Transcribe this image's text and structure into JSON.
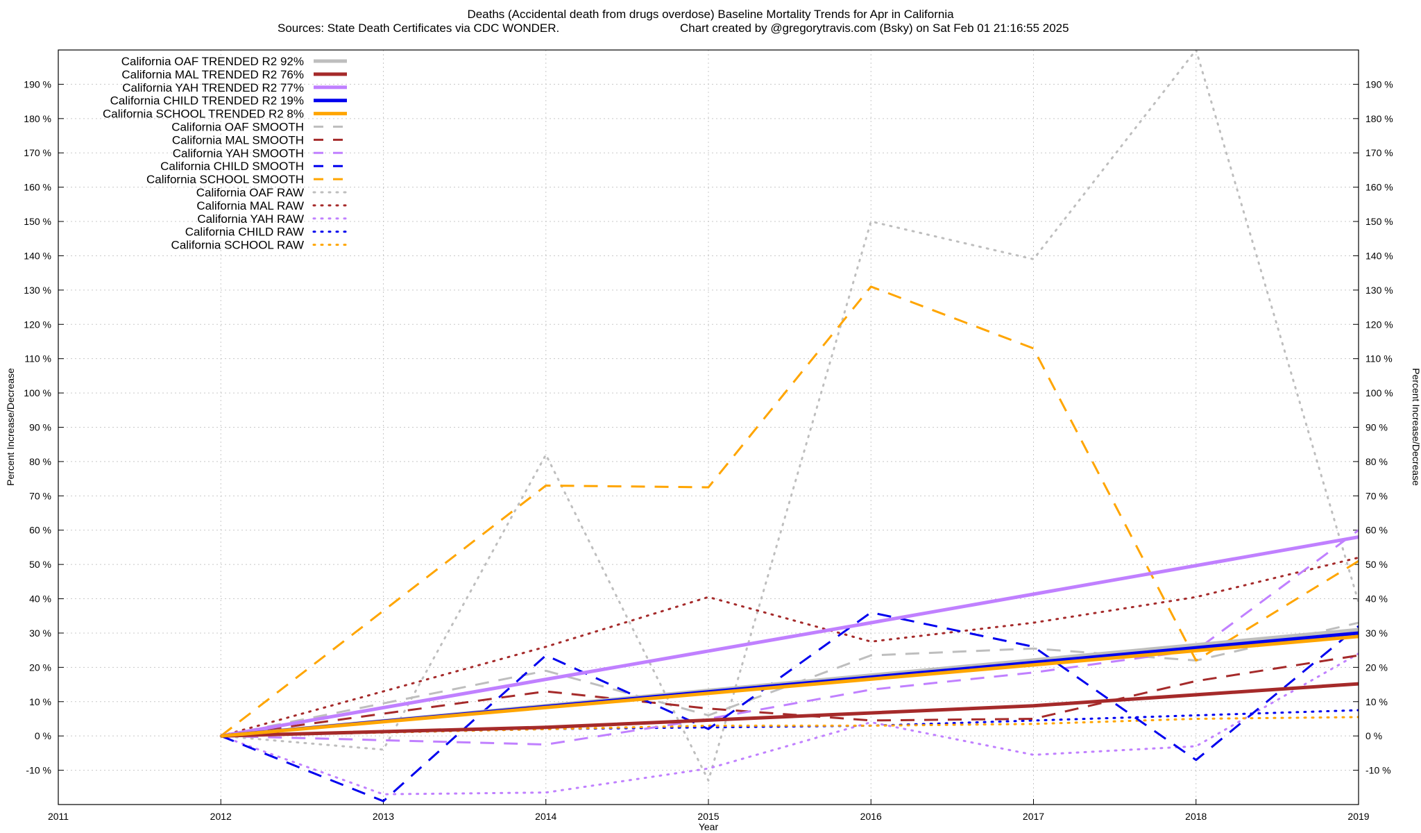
{
  "chart_data": {
    "type": "line",
    "title_line1": "Deaths (Accidental death from drugs overdose)  Baseline Mortality Trends for Apr in California",
    "title_line2_left": "Sources: State Death Certificates via CDC WONDER.",
    "title_line2_right": "Chart created by @gregorytravis.com (Bsky) on Sat Feb 01 21:16:55 2025",
    "xlabel": "Year",
    "ylabel": "Percent Increase/Decrease",
    "xlim": [
      2011,
      2019
    ],
    "ylim": [
      -20,
      200
    ],
    "x_ticks": [
      "2011",
      "2012",
      "2013",
      "2014",
      "2015",
      "2016",
      "2017",
      "2018",
      "2019"
    ],
    "y_ticks": [
      "-10 %",
      "0 %",
      "10 %",
      "20 %",
      "30 %",
      "40 %",
      "50 %",
      "60 %",
      "70 %",
      "80 %",
      "90 %",
      "100 %",
      "110 %",
      "120 %",
      "130 %",
      "140 %",
      "150 %",
      "160 %",
      "170 %",
      "180 %",
      "190 %"
    ],
    "grid": true,
    "legend_position": "top-left",
    "series": [
      {
        "name": "California OAF TRENDED R2  92%",
        "style": "solid",
        "color": "#bebebe",
        "x": [
          2012,
          2019
        ],
        "y": [
          0,
          31
        ]
      },
      {
        "name": "California MAL TRENDED R2  76%",
        "style": "solid",
        "color": "#a52a2a",
        "x": [
          2012,
          2014,
          2017,
          2019
        ],
        "y": [
          0,
          2.5,
          8.8,
          15.2
        ]
      },
      {
        "name": "California YAH TRENDED R2  77%",
        "style": "solid",
        "color": "#c080ff",
        "x": [
          2012,
          2016,
          2019
        ],
        "y": [
          0,
          33,
          58
        ]
      },
      {
        "name": "California CHILD TRENDED R2  19%",
        "style": "solid",
        "color": "#0000ee",
        "x": [
          2012,
          2019
        ],
        "y": [
          0,
          30
        ]
      },
      {
        "name": "California SCHOOL TRENDED R2  8%",
        "style": "solid",
        "color": "#ffa500",
        "x": [
          2012,
          2019
        ],
        "y": [
          0,
          29
        ]
      },
      {
        "name": "California OAF SMOOTH",
        "style": "dash",
        "color": "#bebebe",
        "x": [
          2012,
          2014,
          2015,
          2016,
          2017,
          2018,
          2019
        ],
        "y": [
          0,
          19,
          6,
          23.5,
          25.5,
          22,
          33
        ]
      },
      {
        "name": "California MAL SMOOTH",
        "style": "dash",
        "color": "#a52a2a",
        "x": [
          2012,
          2014,
          2015,
          2016,
          2017,
          2018,
          2019
        ],
        "y": [
          0,
          13,
          8,
          4.5,
          5,
          16,
          23.5
        ]
      },
      {
        "name": "California YAH SMOOTH",
        "style": "dash",
        "color": "#c080ff",
        "x": [
          2012,
          2014,
          2015,
          2016,
          2017,
          2018,
          2019
        ],
        "y": [
          0,
          -2.5,
          5,
          13.5,
          18.5,
          25,
          60
        ]
      },
      {
        "name": "California CHILD SMOOTH",
        "style": "dash",
        "color": "#0000ee",
        "x": [
          2012,
          2013,
          2014,
          2015,
          2016,
          2017,
          2018,
          2019
        ],
        "y": [
          0,
          -19,
          23.5,
          2,
          36,
          26,
          -7,
          32
        ]
      },
      {
        "name": "California SCHOOL SMOOTH",
        "style": "dash",
        "color": "#ffa500",
        "x": [
          2012,
          2014,
          2015,
          2016,
          2017,
          2018,
          2019
        ],
        "y": [
          0,
          73,
          72.5,
          131,
          113,
          22,
          51
        ]
      },
      {
        "name": "California OAF RAW",
        "style": "dot",
        "color": "#bebebe",
        "x": [
          2012,
          2013,
          2014,
          2015,
          2016,
          2017,
          2018,
          2019
        ],
        "y": [
          0,
          -4,
          82,
          -13,
          150,
          139,
          200,
          39
        ]
      },
      {
        "name": "California MAL RAW",
        "style": "dot",
        "color": "#a52a2a",
        "x": [
          2012,
          2014,
          2015,
          2016,
          2017,
          2018,
          2019
        ],
        "y": [
          0,
          26,
          40.5,
          27.5,
          33,
          40.5,
          52
        ]
      },
      {
        "name": "California YAH RAW",
        "style": "dot",
        "color": "#c080ff",
        "x": [
          2012,
          2013,
          2014,
          2015,
          2016,
          2017,
          2018,
          2019
        ],
        "y": [
          0,
          -17,
          -16.5,
          -9.5,
          4,
          -5.5,
          -3,
          24
        ]
      },
      {
        "name": "California CHILD RAW",
        "style": "dot",
        "color": "#0000ee",
        "x": [
          2012,
          2014,
          2016,
          2018,
          2019
        ],
        "y": [
          0,
          2,
          3,
          6,
          7.5
        ]
      },
      {
        "name": "California SCHOOL RAW",
        "style": "dot",
        "color": "#ffa500",
        "x": [
          2012,
          2015,
          2016,
          2017,
          2018,
          2019
        ],
        "y": [
          0,
          3,
          3,
          3.5,
          5,
          5.5
        ]
      }
    ]
  }
}
